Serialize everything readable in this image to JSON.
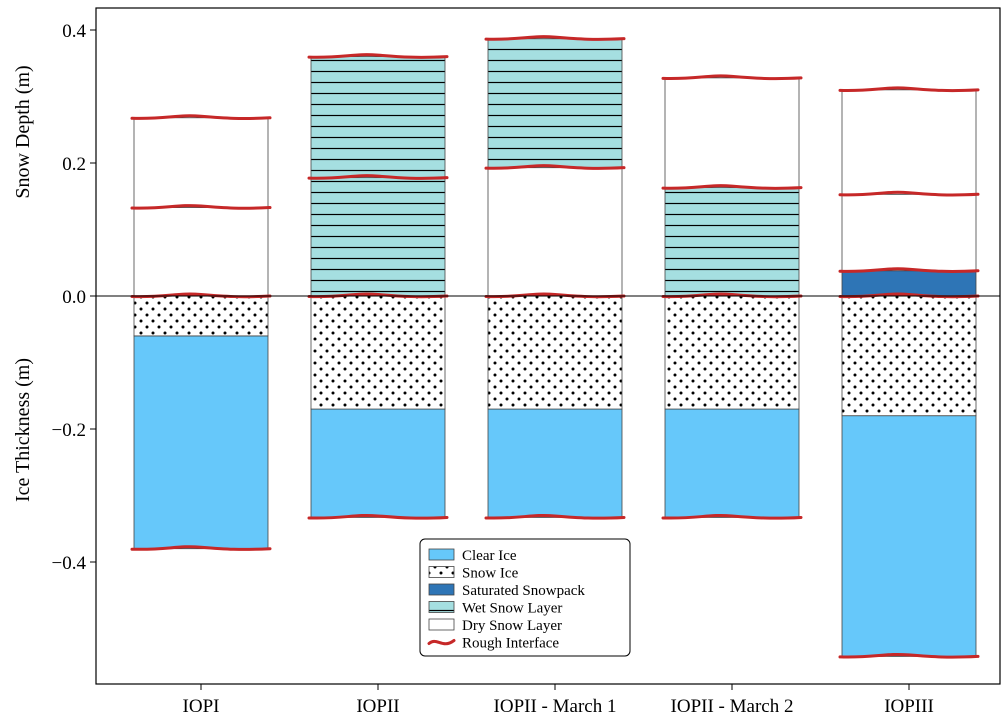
{
  "chart_data": {
    "type": "bar",
    "stacked": true,
    "categories": [
      "IOPI",
      "IOPII",
      "IOPII - March 1",
      "IOPII - March 2",
      "IOPIII"
    ],
    "ylim": [
      -0.58,
      0.43
    ],
    "yticks": [
      -0.4,
      -0.2,
      0.0,
      0.2,
      0.4
    ],
    "ytick_labels": [
      "−0.4",
      "−0.2",
      "0.0",
      "0.2",
      "0.4"
    ],
    "ylabel_top": "Snow Depth (m)",
    "ylabel_bottom": "Ice Thickness (m)",
    "zero_line": true,
    "grid": false,
    "legend_location": "lower center",
    "colors": {
      "clear_ice": "#66c8fa",
      "snow_ice": "#ffffff",
      "saturated": "#2e75b6",
      "wet_snow": "#a5dfe1",
      "dry_snow": "#ffffff",
      "rough": "#c62828"
    },
    "legend": [
      {
        "key": "clear_ice",
        "label": "Clear Ice"
      },
      {
        "key": "snow_ice",
        "label": "Snow Ice"
      },
      {
        "key": "saturated",
        "label": "Saturated Snowpack"
      },
      {
        "key": "wet_snow",
        "label": "Wet Snow Layer"
      },
      {
        "key": "dry_snow",
        "label": "Dry Snow Layer"
      },
      {
        "key": "rough",
        "label": "Rough Interface"
      }
    ],
    "bars": [
      {
        "category": "IOPI",
        "layers": [
          {
            "type": "clear_ice",
            "bottom": -0.38,
            "top": -0.06
          },
          {
            "type": "snow_ice",
            "bottom": -0.06,
            "top": 0.0
          },
          {
            "type": "dry_snow",
            "bottom": 0.0,
            "top": 0.133
          },
          {
            "type": "dry_snow",
            "bottom": 0.133,
            "top": 0.268
          }
        ],
        "interfaces": [
          -0.38,
          0.0,
          0.133,
          0.268
        ]
      },
      {
        "category": "IOPII",
        "layers": [
          {
            "type": "clear_ice",
            "bottom": -0.333,
            "top": -0.17
          },
          {
            "type": "snow_ice",
            "bottom": -0.17,
            "top": 0.0
          },
          {
            "type": "wet_snow",
            "bottom": 0.0,
            "top": 0.178
          },
          {
            "type": "wet_snow",
            "bottom": 0.178,
            "top": 0.36
          }
        ],
        "interfaces": [
          -0.333,
          0.0,
          0.178,
          0.36
        ]
      },
      {
        "category": "IOPII - March 1",
        "layers": [
          {
            "type": "clear_ice",
            "bottom": -0.333,
            "top": -0.17
          },
          {
            "type": "snow_ice",
            "bottom": -0.17,
            "top": 0.0
          },
          {
            "type": "dry_snow",
            "bottom": 0.0,
            "top": 0.193
          },
          {
            "type": "wet_snow",
            "bottom": 0.193,
            "top": 0.387
          }
        ],
        "interfaces": [
          -0.333,
          0.0,
          0.193,
          0.387
        ]
      },
      {
        "category": "IOPII - March 2",
        "layers": [
          {
            "type": "clear_ice",
            "bottom": -0.333,
            "top": -0.17
          },
          {
            "type": "snow_ice",
            "bottom": -0.17,
            "top": 0.0
          },
          {
            "type": "wet_snow",
            "bottom": 0.0,
            "top": 0.163
          },
          {
            "type": "dry_snow",
            "bottom": 0.163,
            "top": 0.328
          }
        ],
        "interfaces": [
          -0.333,
          0.0,
          0.163,
          0.328
        ]
      },
      {
        "category": "IOPIII",
        "layers": [
          {
            "type": "clear_ice",
            "bottom": -0.542,
            "top": -0.18
          },
          {
            "type": "snow_ice",
            "bottom": -0.18,
            "top": 0.0
          },
          {
            "type": "saturated",
            "bottom": 0.0,
            "top": 0.038
          },
          {
            "type": "dry_snow",
            "bottom": 0.038,
            "top": 0.153
          },
          {
            "type": "dry_snow",
            "bottom": 0.153,
            "top": 0.31
          }
        ],
        "interfaces": [
          -0.542,
          0.0,
          0.038,
          0.153,
          0.31
        ]
      }
    ]
  }
}
